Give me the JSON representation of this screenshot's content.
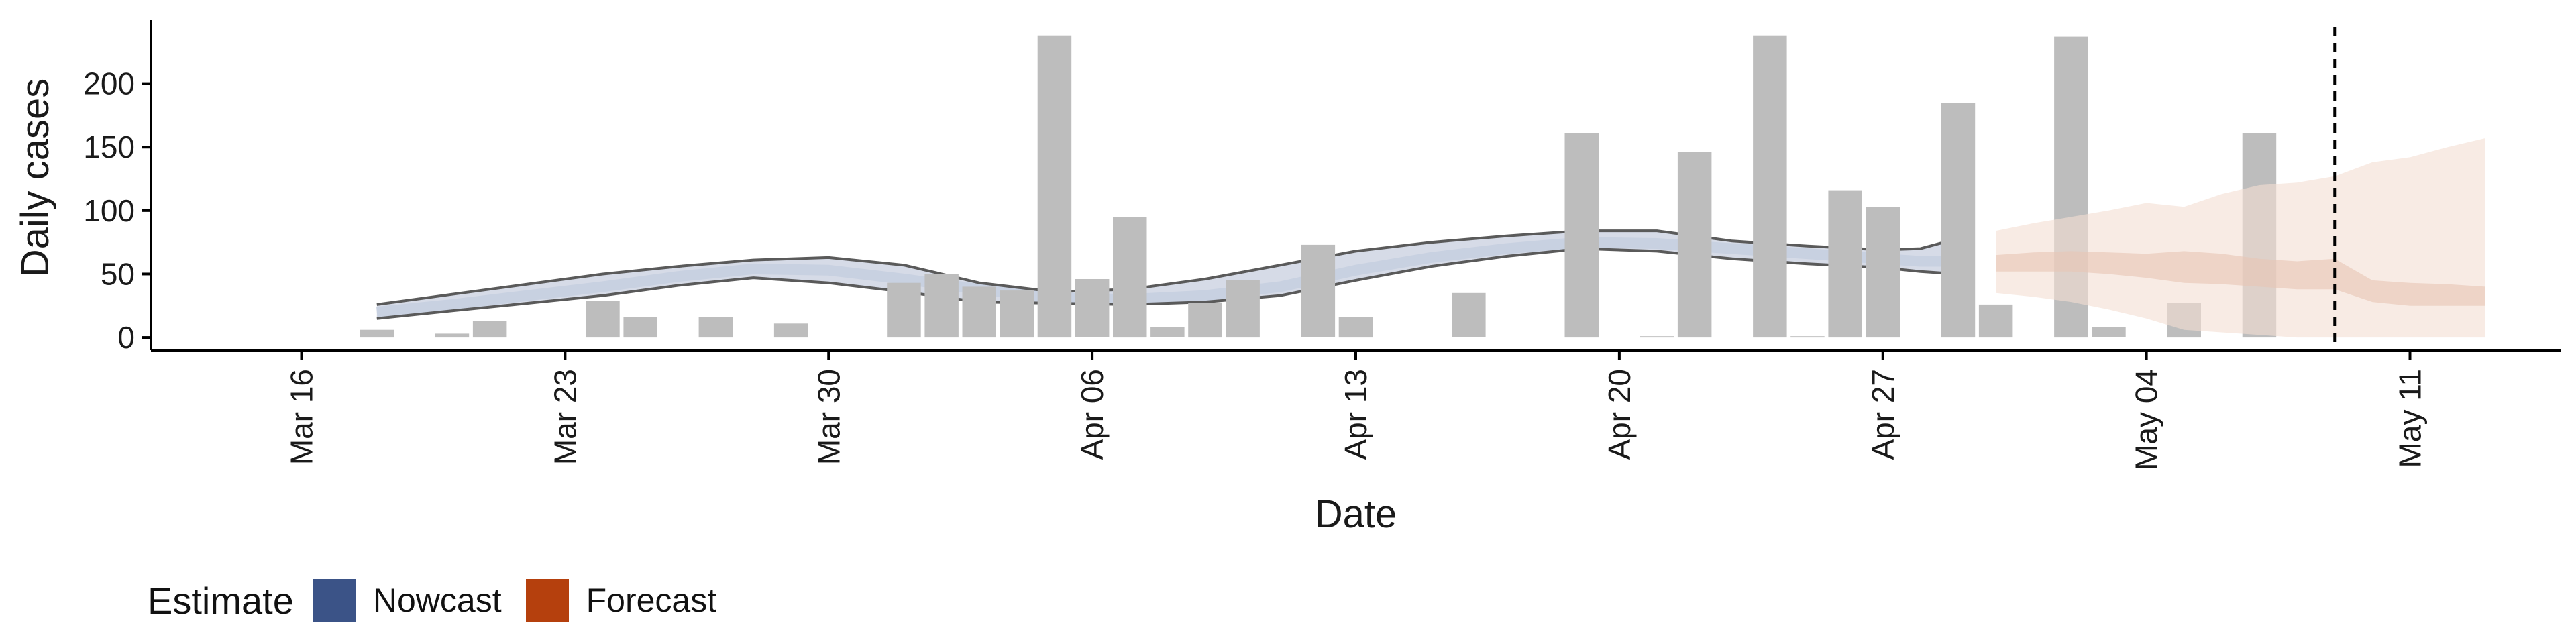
{
  "chart_data": {
    "type": "bar",
    "xlabel": "Date",
    "ylabel": "Daily cases",
    "y_ticks": [
      0,
      50,
      100,
      150,
      200
    ],
    "ylim": [
      -10,
      250
    ],
    "x_ticks": [
      {
        "date": "2020-03-16",
        "label": "Mar 16"
      },
      {
        "date": "2020-03-23",
        "label": "Mar 23"
      },
      {
        "date": "2020-03-30",
        "label": "Mar 30"
      },
      {
        "date": "2020-04-06",
        "label": "Apr 06"
      },
      {
        "date": "2020-04-13",
        "label": "Apr 13"
      },
      {
        "date": "2020-04-20",
        "label": "Apr 20"
      },
      {
        "date": "2020-04-27",
        "label": "Apr 27"
      },
      {
        "date": "2020-05-04",
        "label": "May 04"
      },
      {
        "date": "2020-05-11",
        "label": "May 11"
      }
    ],
    "xlim": [
      "2020-03-12",
      "2020-05-15"
    ],
    "vline_date": "2020-05-09",
    "reported_cases": [
      [
        "2020-03-18",
        6
      ],
      [
        "2020-03-20",
        3
      ],
      [
        "2020-03-21",
        13
      ],
      [
        "2020-03-24",
        29
      ],
      [
        "2020-03-25",
        16
      ],
      [
        "2020-03-27",
        16
      ],
      [
        "2020-03-29",
        11
      ],
      [
        "2020-04-01",
        43
      ],
      [
        "2020-04-02",
        50
      ],
      [
        "2020-04-03",
        40
      ],
      [
        "2020-04-04",
        37
      ],
      [
        "2020-04-05",
        238
      ],
      [
        "2020-04-06",
        46
      ],
      [
        "2020-04-07",
        95
      ],
      [
        "2020-04-08",
        8
      ],
      [
        "2020-04-09",
        27
      ],
      [
        "2020-04-10",
        45
      ],
      [
        "2020-04-12",
        73
      ],
      [
        "2020-04-13",
        16
      ],
      [
        "2020-04-16",
        35
      ],
      [
        "2020-04-19",
        161
      ],
      [
        "2020-04-21",
        1
      ],
      [
        "2020-04-22",
        146
      ],
      [
        "2020-04-24",
        238
      ],
      [
        "2020-04-25",
        1
      ],
      [
        "2020-04-26",
        116
      ],
      [
        "2020-04-27",
        103
      ],
      [
        "2020-04-29",
        185
      ],
      [
        "2020-04-30",
        26
      ],
      [
        "2020-05-02",
        237
      ],
      [
        "2020-05-03",
        8
      ],
      [
        "2020-05-05",
        27
      ],
      [
        "2020-05-07",
        161
      ]
    ],
    "nowcast": {
      "dates": [
        "2020-03-18",
        "2020-03-20",
        "2020-03-22",
        "2020-03-24",
        "2020-03-26",
        "2020-03-28",
        "2020-03-30",
        "2020-04-01",
        "2020-04-03",
        "2020-04-05",
        "2020-04-07",
        "2020-04-09",
        "2020-04-11",
        "2020-04-13",
        "2020-04-15",
        "2020-04-17",
        "2020-04-19",
        "2020-04-21",
        "2020-04-23",
        "2020-04-25",
        "2020-04-27",
        "2020-04-28",
        "2020-04-29"
      ],
      "lower": [
        15,
        21,
        27,
        33,
        41,
        47,
        43,
        36,
        28,
        27,
        26,
        28,
        33,
        45,
        56,
        64,
        70,
        68,
        62,
        58,
        55,
        52,
        50
      ],
      "median": [
        20,
        26,
        33,
        40,
        48,
        54,
        53,
        46,
        38,
        31,
        30,
        33,
        40,
        53,
        63,
        70,
        75,
        74,
        70,
        66,
        62,
        60,
        60
      ],
      "upper": [
        26,
        34,
        42,
        50,
        56,
        61,
        63,
        57,
        43,
        36,
        38,
        46,
        57,
        68,
        75,
        80,
        84,
        84,
        76,
        72,
        69,
        70,
        78
      ]
    },
    "forecast": {
      "dates": [
        "2020-04-30",
        "2020-05-01",
        "2020-05-02",
        "2020-05-03",
        "2020-05-04",
        "2020-05-05",
        "2020-05-06",
        "2020-05-07",
        "2020-05-08",
        "2020-05-09",
        "2020-05-10",
        "2020-05-11",
        "2020-05-12",
        "2020-05-13"
      ],
      "outer_lower": [
        35,
        32,
        28,
        22,
        15,
        6,
        4,
        2,
        0,
        0,
        0,
        0,
        0,
        0
      ],
      "outer_upper": [
        84,
        90,
        95,
        100,
        106,
        103,
        113,
        120,
        122,
        127,
        138,
        142,
        150,
        157
      ],
      "inner_lower": [
        52,
        52,
        52,
        50,
        47,
        43,
        42,
        40,
        38,
        38,
        28,
        25,
        25,
        25
      ],
      "inner_upper": [
        65,
        67,
        68,
        67,
        66,
        68,
        66,
        62,
        60,
        62,
        45,
        43,
        42,
        40
      ]
    },
    "legend": {
      "title": "Estimate",
      "position": "bottom-left",
      "items": [
        {
          "label": "Nowcast",
          "color": "#3b5387"
        },
        {
          "label": "Forecast",
          "color": "#b5400d"
        }
      ]
    },
    "colors": {
      "bar": "#bdbdbd",
      "nowcast_band": "#a4b0c9",
      "nowcast_line": "#c6cfe0",
      "interval_line": "#5a5a5a",
      "forecast_outer": "#f3ddd2",
      "forecast_inner": "#e8c5b4",
      "axis": "#000000"
    }
  }
}
